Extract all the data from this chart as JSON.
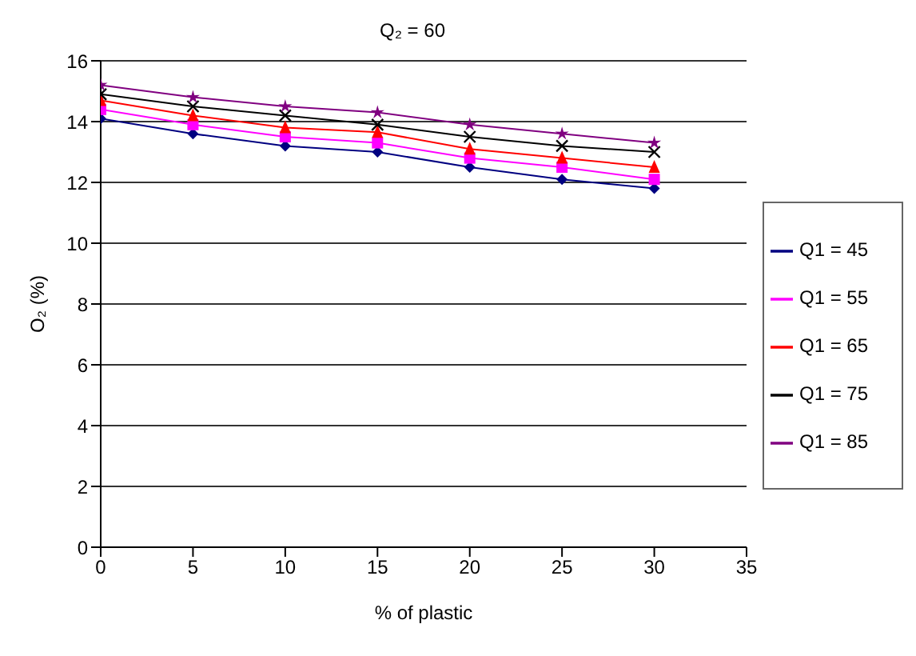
{
  "chart_data": {
    "type": "line",
    "title": "Q₂ = 60",
    "xlabel": "% of plastic",
    "ylabel": "O₂ (%)",
    "x": [
      0,
      5,
      10,
      15,
      20,
      25,
      30
    ],
    "xlim": [
      0,
      35
    ],
    "xticks": [
      0,
      5,
      10,
      15,
      20,
      25,
      30,
      35
    ],
    "ylim": [
      0,
      16
    ],
    "yticks": [
      0,
      2,
      4,
      6,
      8,
      10,
      12,
      14,
      16
    ],
    "grid": "y",
    "legend": "right",
    "series": [
      {
        "name": "Q1 = 45",
        "color": "#000080",
        "marker": "diamond",
        "values": [
          14.1,
          13.6,
          13.2,
          13.0,
          12.5,
          12.1,
          11.8
        ]
      },
      {
        "name": "Q1 = 55",
        "color": "#ff00ff",
        "marker": "square",
        "values": [
          14.4,
          13.9,
          13.5,
          13.3,
          12.8,
          12.5,
          12.1
        ]
      },
      {
        "name": "Q1 = 65",
        "color": "#ff0000",
        "marker": "triangle",
        "values": [
          14.7,
          14.2,
          13.8,
          13.65,
          13.1,
          12.8,
          12.5
        ]
      },
      {
        "name": "Q1 = 75",
        "color": "#000000",
        "marker": "cross",
        "values": [
          14.9,
          14.5,
          14.2,
          13.9,
          13.5,
          13.2,
          13.0
        ]
      },
      {
        "name": "Q1 = 85",
        "color": "#800080",
        "marker": "star",
        "values": [
          15.2,
          14.8,
          14.5,
          14.3,
          13.9,
          13.6,
          13.3
        ]
      }
    ]
  }
}
